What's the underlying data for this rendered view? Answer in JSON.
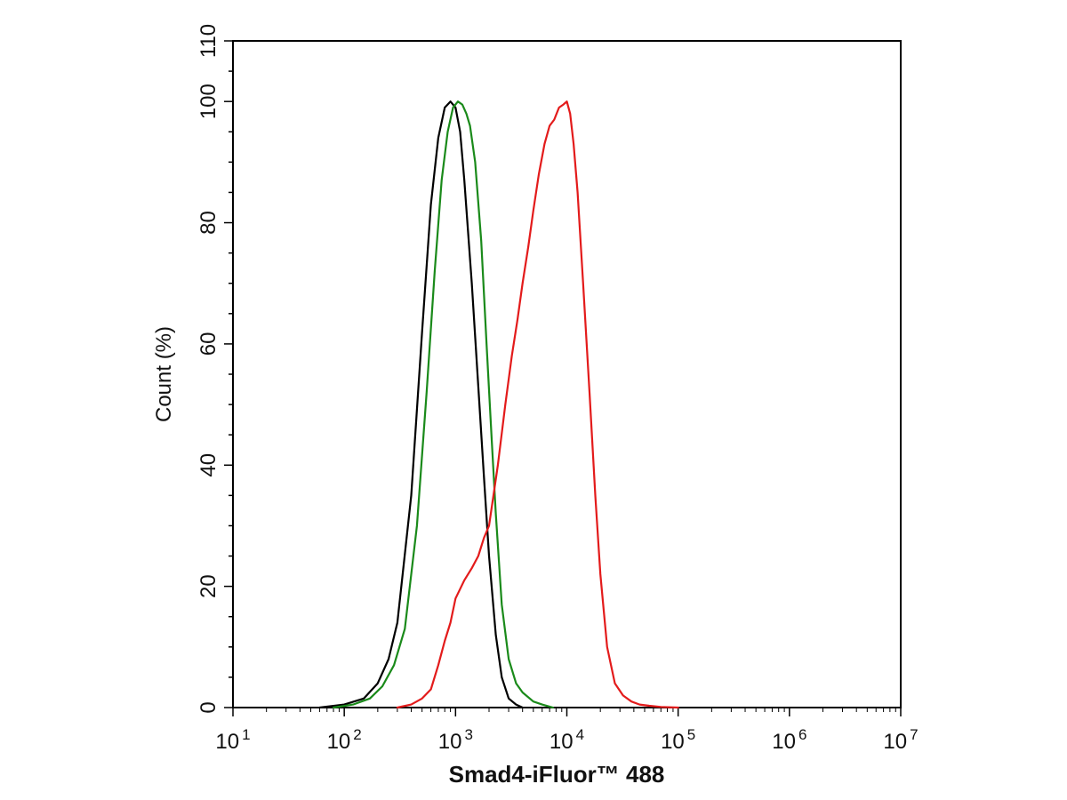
{
  "chart_data": {
    "type": "line",
    "title": "",
    "xlabel": "Smad4-iFluor™ 488",
    "ylabel": "Count  (%)",
    "x_scale": "log",
    "xlim": [
      10,
      10000000
    ],
    "ylim": [
      0,
      110
    ],
    "x_tick_labels": [
      {
        "base": "10",
        "exp": "1",
        "value": 10
      },
      {
        "base": "10",
        "exp": "2",
        "value": 100
      },
      {
        "base": "10",
        "exp": "3",
        "value": 1000
      },
      {
        "base": "10",
        "exp": "4",
        "value": 10000
      },
      {
        "base": "10",
        "exp": "5",
        "value": 100000
      },
      {
        "base": "10",
        "exp": "6",
        "value": 1000000
      },
      {
        "base": "10",
        "exp": "7",
        "value": 10000000
      }
    ],
    "y_ticks": [
      "0",
      "20",
      "40",
      "60",
      "80",
      "100",
      "110"
    ],
    "grid": false,
    "legend": "none",
    "series": [
      {
        "color": "#000000",
        "x": [
          60,
          100,
          150,
          200,
          250,
          300,
          400,
          500,
          600,
          700,
          800,
          900,
          1000,
          1100,
          1200,
          1400,
          1600,
          1800,
          2000,
          2300,
          2600,
          3000,
          3500,
          4000
        ],
        "y": [
          0,
          0.5,
          1.5,
          4,
          8,
          14,
          35,
          62,
          83,
          94,
          99,
          100,
          99,
          95,
          87,
          70,
          53,
          38,
          25,
          12,
          5,
          1.5,
          0.5,
          0
        ]
      },
      {
        "color": "#1a8a1a",
        "x": [
          80,
          120,
          170,
          220,
          280,
          350,
          450,
          550,
          650,
          750,
          850,
          950,
          1050,
          1150,
          1250,
          1350,
          1500,
          1700,
          1900,
          2100,
          2300,
          2600,
          3000,
          3500,
          4000,
          5000,
          6000,
          7500
        ],
        "y": [
          0,
          0.5,
          1.5,
          3.5,
          7,
          13,
          30,
          52,
          72,
          87,
          95,
          99,
          100,
          99.5,
          98,
          96,
          90,
          77,
          60,
          45,
          32,
          17,
          8,
          4,
          2.5,
          1,
          0.5,
          0
        ]
      },
      {
        "color": "#e31b1b",
        "x": [
          300,
          400,
          500,
          600,
          700,
          800,
          900,
          1000,
          1200,
          1400,
          1600,
          1800,
          2000,
          2400,
          2800,
          3200,
          3600,
          4000,
          4500,
          5000,
          5600,
          6300,
          7000,
          7700,
          8500,
          9300,
          10000,
          10700,
          11500,
          12500,
          14000,
          16000,
          18000,
          20000,
          23000,
          27000,
          32000,
          38000,
          45000,
          55000,
          70000,
          100000
        ],
        "y": [
          0,
          0.5,
          1.5,
          3,
          7,
          11,
          14,
          18,
          21,
          23,
          25,
          28,
          30,
          40,
          50,
          58,
          64,
          70,
          76,
          82,
          88,
          93,
          96,
          97,
          99,
          99.5,
          100,
          98,
          93,
          85,
          70,
          52,
          35,
          22,
          10,
          4,
          2,
          1,
          0.5,
          0.3,
          0.1,
          0
        ]
      }
    ]
  }
}
